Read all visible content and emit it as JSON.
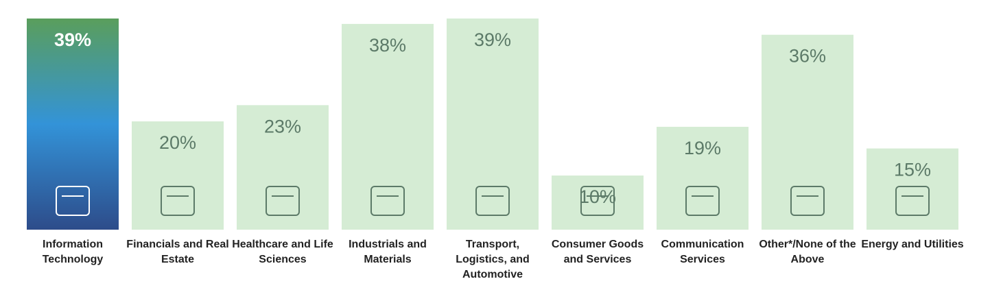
{
  "chart_data": {
    "type": "bar",
    "categories": [
      "Information Technology",
      "Financials and Real Estate",
      "Healthcare and Life Sciences",
      "Industrials and Materials",
      "Transport, Logistics, and Automotive",
      "Consumer Goods and Services",
      "Communication Services",
      "Other*/None of the Above",
      "Energy and Utilities"
    ],
    "values": [
      39,
      20,
      23,
      38,
      39,
      10,
      19,
      36,
      15
    ],
    "value_labels": [
      "39%",
      "20%",
      "23%",
      "38%",
      "39%",
      "10%",
      "19%",
      "36%",
      "15%"
    ],
    "colors": [
      [
        "#5a9e5c",
        "#3393d8",
        "#2d4c8a"
      ],
      "#d5ecd4",
      "#d5ecd4",
      "#d5ecd4",
      "#d5ecd4",
      "#d5ecd4",
      "#d5ecd4",
      "#d5ecd4",
      "#d5ecd4"
    ]
  }
}
